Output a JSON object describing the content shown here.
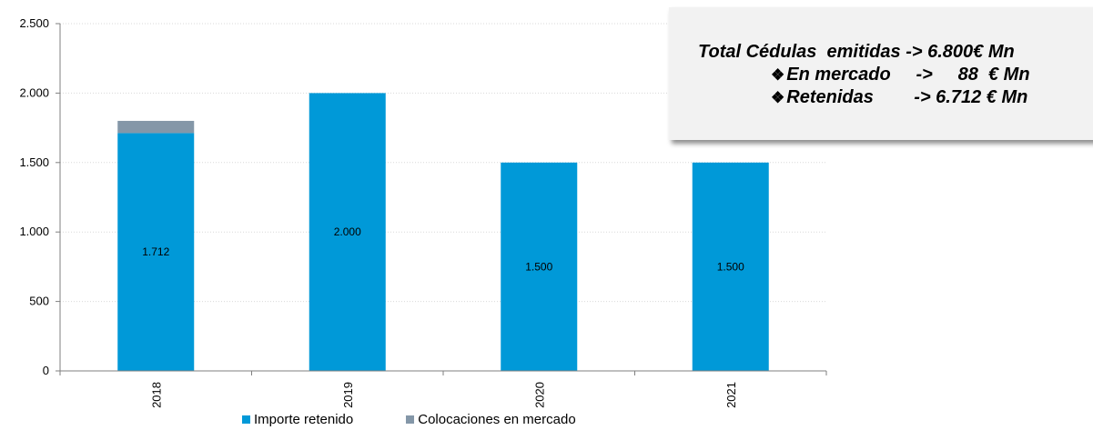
{
  "chart_data": {
    "type": "bar",
    "stacked": true,
    "categories": [
      "2018",
      "2019",
      "2020",
      "2021"
    ],
    "series": [
      {
        "name": "Importe retenido",
        "color": "#0099d8",
        "values": [
          1712,
          2000,
          1500,
          1500
        ],
        "labels": [
          "1.712",
          "2.000",
          "1.500",
          "1.500"
        ]
      },
      {
        "name": "Colocaciones en mercado",
        "color": "#8497a8",
        "values": [
          88,
          0,
          0,
          0
        ]
      }
    ],
    "ylim": [
      0,
      2500
    ],
    "yticks": [
      0,
      500,
      1000,
      1500,
      2000,
      2500
    ],
    "ytick_labels": [
      "0",
      "500",
      "1.000",
      "1.500",
      "2.000",
      "2.500"
    ],
    "grid": true,
    "legend_position": "bottom",
    "xlabel": "",
    "ylabel": "",
    "title": ""
  },
  "callout": {
    "line1": "Total Cédulas  emitidas -> 6.800€ Mn",
    "line2": "En mercado     ->     88  € Mn",
    "line3": "Retenidas        -> 6.712 € Mn",
    "bullet": "❖"
  }
}
